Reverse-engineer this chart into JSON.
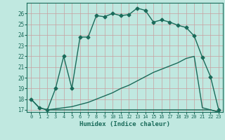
{
  "xlabel": "Humidex (Indice chaleur)",
  "bg_color": "#c0e8e0",
  "grid_color": "#c8a0a0",
  "line_color": "#1a6b5a",
  "xlim": [
    -0.5,
    23.5
  ],
  "ylim": [
    16.8,
    27.0
  ],
  "yticks": [
    17,
    18,
    19,
    20,
    21,
    22,
    23,
    24,
    25,
    26
  ],
  "xticks": [
    0,
    1,
    2,
    3,
    4,
    5,
    6,
    7,
    8,
    9,
    10,
    11,
    12,
    13,
    14,
    15,
    16,
    17,
    18,
    19,
    20,
    21,
    22,
    23
  ],
  "curve_main_x": [
    0,
    1,
    2,
    3,
    4,
    5,
    6,
    7,
    8,
    9,
    10,
    11,
    12,
    13,
    14,
    15,
    16,
    17,
    18,
    19,
    20,
    21,
    22,
    23
  ],
  "curve_main_y": [
    18.0,
    17.2,
    17.0,
    19.0,
    22.0,
    19.0,
    23.8,
    23.8,
    25.8,
    25.7,
    26.0,
    25.8,
    25.9,
    26.5,
    26.3,
    25.2,
    25.4,
    25.2,
    24.9,
    24.7,
    23.9,
    21.9,
    20.1,
    17.0
  ],
  "curve_flat_x": [
    0,
    1,
    2,
    3,
    4,
    5,
    6,
    7,
    8,
    9,
    10,
    11,
    12,
    13,
    14,
    15,
    16,
    17,
    18,
    19,
    20,
    21,
    22,
    23
  ],
  "curve_flat_y": [
    18.0,
    17.2,
    17.0,
    17.0,
    17.0,
    17.0,
    17.0,
    17.0,
    17.0,
    17.0,
    17.0,
    17.0,
    17.0,
    17.0,
    17.0,
    17.0,
    17.0,
    17.0,
    17.0,
    17.0,
    17.0,
    17.0,
    17.0,
    16.8
  ],
  "curve_diag_x": [
    2,
    3,
    4,
    5,
    6,
    7,
    8,
    9,
    10,
    11,
    12,
    13,
    14,
    15,
    16,
    17,
    18,
    19,
    20,
    21,
    22,
    23
  ],
  "curve_diag_y": [
    17.0,
    17.1,
    17.2,
    17.3,
    17.5,
    17.7,
    18.0,
    18.3,
    18.6,
    19.0,
    19.3,
    19.7,
    20.1,
    20.5,
    20.8,
    21.1,
    21.4,
    21.8,
    22.0,
    17.2,
    17.0,
    16.8
  ],
  "marker": "D",
  "marker_size": 2.5,
  "linewidth": 1.0
}
